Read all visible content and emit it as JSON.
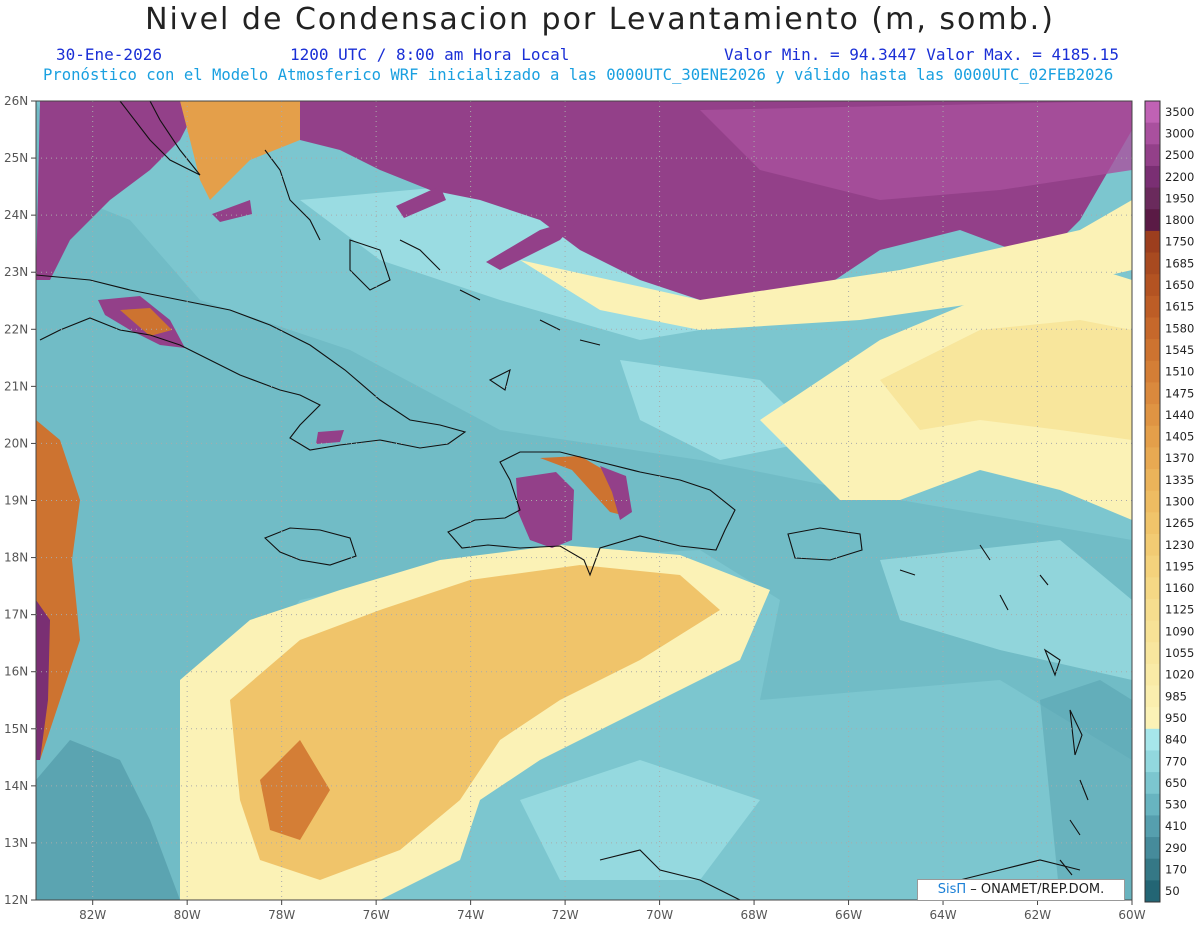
{
  "header": {
    "title": "Nivel de Condensacion por Levantamiento (m, somb.)",
    "date": "30-Ene-2026",
    "time": "1200 UTC / 8:00 am Hora Local",
    "min_max": "Valor Min. = 94.3447  Valor Max. = 4185.15",
    "description": "Pronóstico con el Modelo Atmosferico WRF inicializado a las 0000UTC_30ENE2026 y válido hasta las  0000UTC_02FEB2026"
  },
  "map": {
    "lon_range": [
      -83.2,
      -60
    ],
    "lat_range": [
      12,
      26
    ],
    "lon_labels": [
      "82W",
      "80W",
      "78W",
      "76W",
      "74W",
      "72W",
      "70W",
      "68W",
      "66W",
      "64W",
      "62W",
      "60W"
    ],
    "lat_labels": [
      "26N",
      "25N",
      "24N",
      "23N",
      "22N",
      "21N",
      "20N",
      "19N",
      "18N",
      "17N",
      "16N",
      "15N",
      "14N",
      "13N",
      "12N"
    ],
    "gridlines": true
  },
  "colorbar": {
    "levels": [
      "3500",
      "3000",
      "2500",
      "2200",
      "1950",
      "1800",
      "1750",
      "1685",
      "1650",
      "1615",
      "1580",
      "1545",
      "1510",
      "1475",
      "1440",
      "1405",
      "1370",
      "1335",
      "1300",
      "1265",
      "1230",
      "1195",
      "1160",
      "1125",
      "1090",
      "1055",
      "1020",
      "985",
      "950",
      "840",
      "770",
      "650",
      "530",
      "410",
      "290",
      "170",
      "50"
    ],
    "colors": [
      "#c062b4",
      "#a9509e",
      "#934089",
      "#7a2f73",
      "#6a2a5c",
      "#5a1a45",
      "#9c3e1e",
      "#a84a20",
      "#b35322",
      "#bd5d26",
      "#c6682b",
      "#cd7330",
      "#d47e36",
      "#da893d",
      "#df9443",
      "#e49f4a",
      "#e8a952",
      "#ebb35a",
      "#eebc62",
      "#f0c46a",
      "#f2cb73",
      "#f4d27c",
      "#f5d885",
      "#f6dd8e",
      "#f7e296",
      "#f8e69e",
      "#f9eaa6",
      "#faeeae",
      "#fbf2b6",
      "#a6e6ea",
      "#92d8de",
      "#7cc6cf",
      "#68b4c0",
      "#569fae",
      "#468b9b",
      "#357886",
      "#236574"
    ]
  },
  "credit": {
    "brand": "SisΠ",
    "text": " – ONAMET/REP.DOM."
  }
}
